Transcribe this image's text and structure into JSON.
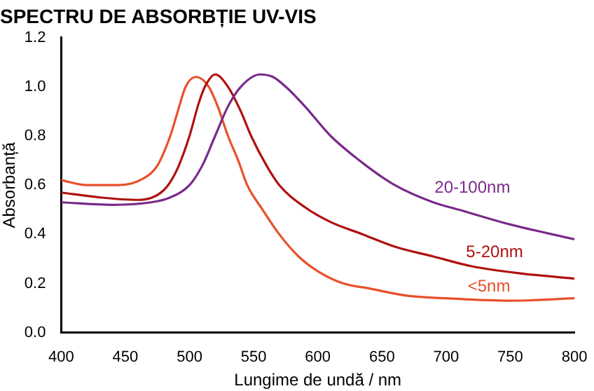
{
  "chart_data": {
    "type": "line",
    "title": "SPECTRU DE ABSORBȚIE UV-VIS",
    "xlabel": "Lungime de undă / nm",
    "ylabel": "Absorbanță",
    "xlim": [
      400,
      800
    ],
    "xticks": [
      400,
      450,
      500,
      550,
      600,
      650,
      700,
      750,
      800
    ],
    "ylim": [
      0,
      1.2
    ],
    "yticks": [
      {
        "value": 0,
        "label": "0.0"
      },
      0.2,
      0.4,
      0.6,
      0.8,
      {
        "value": 1,
        "label": "1.0"
      },
      1.2
    ],
    "grid": false,
    "legend": false,
    "marker": "none",
    "line_style": "solid",
    "series": [
      {
        "name": "20-100nm",
        "color": "#7a2a8a",
        "x": [
          400,
          440,
          470,
          485,
          500,
          510,
          520,
          530,
          540,
          555,
          565,
          575,
          590,
          610,
          635,
          660,
          690,
          710,
          750,
          800
        ],
        "values": [
          0.53,
          0.52,
          0.53,
          0.55,
          0.6,
          0.68,
          0.8,
          0.92,
          1.0,
          1.05,
          1.04,
          1.0,
          0.92,
          0.8,
          0.69,
          0.6,
          0.53,
          0.5,
          0.44,
          0.38
        ]
      },
      {
        "name": "5-20nm",
        "color": "#b01010",
        "x": [
          400,
          430,
          460,
          480,
          490,
          500,
          507,
          512,
          520,
          530,
          540,
          548,
          560,
          570,
          590,
          610,
          635,
          660,
          690,
          720,
          760,
          800
        ],
        "values": [
          0.57,
          0.55,
          0.54,
          0.58,
          0.66,
          0.8,
          0.93,
          1.0,
          1.05,
          1.0,
          0.9,
          0.8,
          0.68,
          0.6,
          0.51,
          0.45,
          0.4,
          0.35,
          0.31,
          0.27,
          0.24,
          0.22
        ]
      },
      {
        "name": "<5nm",
        "color": "#e8502a",
        "x": [
          400,
          420,
          445,
          465,
          475,
          485,
          492,
          497,
          505,
          515,
          522,
          530,
          538,
          545,
          557,
          570,
          585,
          600,
          620,
          640,
          670,
          700,
          750,
          800
        ],
        "values": [
          0.62,
          0.6,
          0.6,
          0.63,
          0.68,
          0.8,
          0.92,
          1.0,
          1.04,
          1.0,
          0.92,
          0.8,
          0.7,
          0.6,
          0.5,
          0.4,
          0.31,
          0.25,
          0.2,
          0.18,
          0.15,
          0.14,
          0.13,
          0.14
        ]
      }
    ]
  }
}
